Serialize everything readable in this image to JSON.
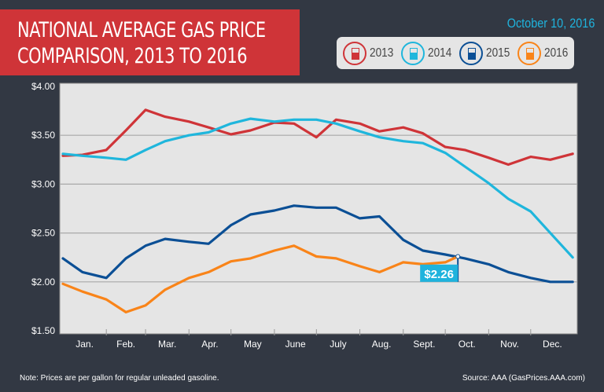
{
  "header": {
    "title_line1": "NATIONAL AVERAGE GAS PRICE",
    "title_line2": "COMPARISON, 2013 TO 2016",
    "date": "October 10, 2016"
  },
  "legend": [
    {
      "label": "2013",
      "color": "#cf3438",
      "icon": "gas-pump-icon"
    },
    {
      "label": "2014",
      "color": "#1fb6dc",
      "icon": "gas-pump-icon"
    },
    {
      "label": "2015",
      "color": "#0b4f95",
      "icon": "gas-pump-icon"
    },
    {
      "label": "2016",
      "color": "#f98419",
      "icon": "gas-pump-icon"
    }
  ],
  "footer": {
    "note": "Note: Prices are per gallon for regular unleaded gasoline.",
    "source": "Source: AAA (GasPrices.AAA.com)"
  },
  "chart_data": {
    "type": "line",
    "title": "NATIONAL AVERAGE GAS PRICE COMPARISON, 2013 TO 2016",
    "xlabel": "",
    "ylabel": "",
    "ylim": [
      1.5,
      4.0
    ],
    "yticks": [
      "$4.00",
      "$3.50",
      "$3.00",
      "$2.50",
      "$2.00",
      "$1.50"
    ],
    "ytick_values": [
      4.0,
      3.5,
      3.0,
      2.5,
      2.0,
      1.5
    ],
    "months": [
      "Jan.",
      "Feb.",
      "Mar.",
      "Apr.",
      "May",
      "June",
      "July",
      "Aug.",
      "Sept.",
      "Oct.",
      "Nov.",
      "Dec."
    ],
    "grid": true,
    "x": [
      "01-01",
      "01-15",
      "02-01",
      "02-15",
      "03-01",
      "03-15",
      "04-01",
      "04-15",
      "05-01",
      "05-15",
      "06-01",
      "06-15",
      "07-01",
      "07-15",
      "08-01",
      "08-15",
      "09-01",
      "09-15",
      "10-01",
      "10-15",
      "11-01",
      "11-15",
      "12-01",
      "12-15",
      "12-31"
    ],
    "series": [
      {
        "name": "2013",
        "color": "#cf3438",
        "values": [
          3.29,
          3.3,
          3.35,
          3.55,
          3.76,
          3.69,
          3.64,
          3.58,
          3.51,
          3.55,
          3.63,
          3.62,
          3.48,
          3.66,
          3.62,
          3.54,
          3.58,
          3.52,
          3.38,
          3.35,
          3.27,
          3.2,
          3.28,
          3.25,
          3.31
        ]
      },
      {
        "name": "2014",
        "color": "#1fb6dc",
        "values": [
          3.31,
          3.29,
          3.27,
          3.25,
          3.35,
          3.44,
          3.5,
          3.53,
          3.62,
          3.67,
          3.64,
          3.66,
          3.66,
          3.62,
          3.54,
          3.48,
          3.44,
          3.42,
          3.32,
          3.18,
          3.01,
          2.85,
          2.72,
          2.5,
          2.25
        ]
      },
      {
        "name": "2015",
        "color": "#0b4f95",
        "values": [
          2.24,
          2.1,
          2.04,
          2.24,
          2.37,
          2.44,
          2.41,
          2.39,
          2.58,
          2.69,
          2.73,
          2.78,
          2.76,
          2.76,
          2.65,
          2.67,
          2.43,
          2.32,
          2.28,
          2.24,
          2.18,
          2.1,
          2.04,
          2.0,
          2.0
        ]
      },
      {
        "name": "2016",
        "color": "#f98419",
        "x": [
          "01-01",
          "01-15",
          "02-01",
          "02-15",
          "03-01",
          "03-15",
          "04-01",
          "04-15",
          "05-01",
          "05-15",
          "06-01",
          "06-15",
          "07-01",
          "07-15",
          "08-01",
          "08-15",
          "09-01",
          "09-15",
          "10-01",
          "10-10"
        ],
        "values": [
          1.98,
          1.9,
          1.82,
          1.69,
          1.76,
          1.92,
          2.04,
          2.1,
          2.21,
          2.24,
          2.32,
          2.37,
          2.26,
          2.24,
          2.16,
          2.1,
          2.2,
          2.18,
          2.2,
          2.26
        ]
      }
    ],
    "annotation": {
      "label": "$2.26",
      "x": "10-10",
      "value": 2.26,
      "color": "#1fb3dd"
    }
  }
}
